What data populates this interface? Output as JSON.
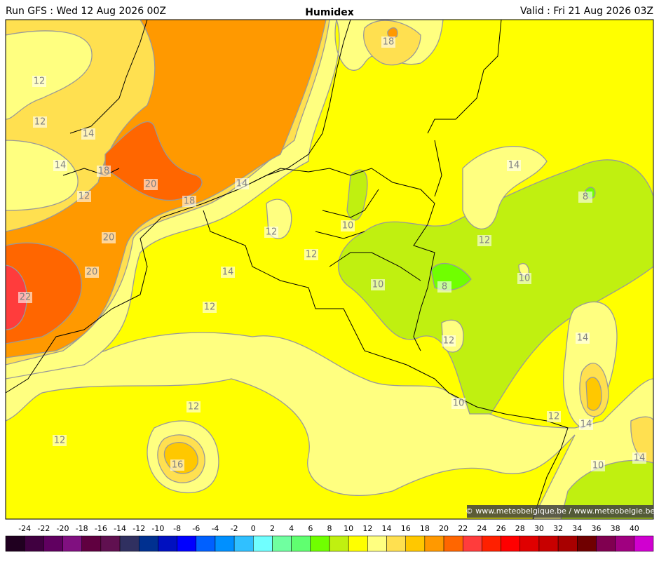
{
  "header": {
    "left": "Run GFS : Wed 12 Aug 2026 00Z",
    "title": "Humidex",
    "right": "Valid : Fri 21 Aug 2026 03Z"
  },
  "contour_labels": [
    18,
    12,
    12,
    14,
    14,
    18,
    20,
    12,
    14,
    18,
    12,
    10,
    20,
    12,
    14,
    20,
    10,
    8,
    22,
    12,
    14,
    8,
    12,
    10,
    14,
    12,
    10,
    12,
    12,
    14,
    12,
    16,
    10,
    14
  ],
  "copyright": "© www.meteobelgique.be / www.meteobelgie.be",
  "colorbar": {
    "labels": [
      -24,
      -22,
      -20,
      -18,
      -16,
      -14,
      -12,
      -10,
      -8,
      -6,
      -4,
      -2,
      0,
      2,
      4,
      6,
      8,
      10,
      12,
      14,
      16,
      18,
      20,
      22,
      24,
      26,
      28,
      30,
      32,
      34,
      36,
      38,
      40
    ],
    "colors": [
      "#200020",
      "#400040",
      "#600060",
      "#801080",
      "#600040",
      "#601050",
      "#303060",
      "#003090",
      "#0010c0",
      "#0000ff",
      "#0060ff",
      "#0090ff",
      "#30c0ff",
      "#70ffff",
      "#70ffa0",
      "#60ff70",
      "#70ff00",
      "#c0f010",
      "#ffff00",
      "#ffff80",
      "#ffe050",
      "#ffc800",
      "#ff9900",
      "#ff6600",
      "#ff3c3c",
      "#ff2000",
      "#ff0000",
      "#e00000",
      "#c80000",
      "#a80000",
      "#700000",
      "#800050",
      "#a00080",
      "#d000d0"
    ]
  }
}
